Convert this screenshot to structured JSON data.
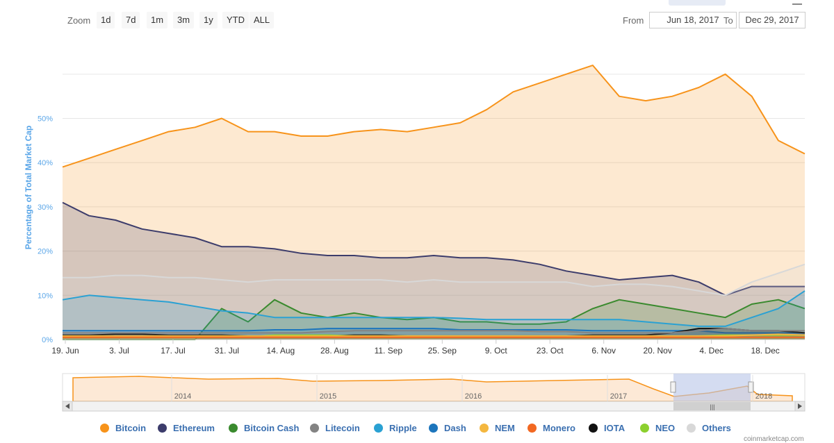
{
  "toolbar": {
    "zoom_label": "Zoom",
    "zoom_buttons": [
      "1d",
      "7d",
      "1m",
      "3m",
      "1y",
      "YTD",
      "ALL"
    ],
    "from_label": "From",
    "from_value": "Jun 18, 2017",
    "to_label": "To",
    "to_value": "Dec 29, 2017"
  },
  "legend": [
    {
      "label": "Bitcoin",
      "color": "#f7931a"
    },
    {
      "label": "Ethereum",
      "color": "#3c3c6b"
    },
    {
      "label": "Bitcoin Cash",
      "color": "#3a8a2e"
    },
    {
      "label": "Litecoin",
      "color": "#838383"
    },
    {
      "label": "Ripple",
      "color": "#2aa1d3"
    },
    {
      "label": "Dash",
      "color": "#1c75bc"
    },
    {
      "label": "NEM",
      "color": "#f4b73f"
    },
    {
      "label": "Monero",
      "color": "#f26822"
    },
    {
      "label": "IOTA",
      "color": "#111111"
    },
    {
      "label": "NEO",
      "color": "#8cd02e"
    },
    {
      "label": "Others",
      "color": "#d8d8d8"
    }
  ],
  "navigator": {
    "year_labels": [
      "2014",
      "2015",
      "2016",
      "2017",
      "2018"
    ]
  },
  "credit": "coinmarketcap.com",
  "chart_data": {
    "type": "area",
    "title": "",
    "ylabel": "Percentage of Total Market Cap",
    "xlabel": "",
    "ylim": [
      0,
      65
    ],
    "yticks": [
      "0%",
      "10%",
      "20%",
      "30%",
      "40%",
      "50%"
    ],
    "ytick_values": [
      0,
      10,
      20,
      30,
      40,
      50
    ],
    "xticks": [
      "19. Jun",
      "3. Jul",
      "17. Jul",
      "31. Jul",
      "14. Aug",
      "28. Aug",
      "11. Sep",
      "25. Sep",
      "9. Oct",
      "23. Oct",
      "6. Nov",
      "20. Nov",
      "4. Dec",
      "18. Dec"
    ],
    "x": [
      "Jun 19",
      "Jun 26",
      "Jul 3",
      "Jul 10",
      "Jul 17",
      "Jul 24",
      "Jul 31",
      "Aug 7",
      "Aug 14",
      "Aug 21",
      "Aug 28",
      "Sep 4",
      "Sep 11",
      "Sep 18",
      "Sep 25",
      "Oct 2",
      "Oct 9",
      "Oct 16",
      "Oct 23",
      "Oct 30",
      "Nov 6",
      "Nov 13",
      "Nov 20",
      "Nov 27",
      "Dec 4",
      "Dec 11",
      "Dec 18",
      "Dec 25",
      "Dec 29"
    ],
    "series": [
      {
        "name": "Bitcoin",
        "color": "#f7931a",
        "values": [
          39,
          41,
          43,
          45,
          47,
          48,
          50,
          47,
          47,
          46,
          46,
          47,
          47.5,
          47,
          48,
          49,
          52,
          56,
          58,
          60,
          62,
          55,
          54,
          55,
          57,
          60,
          55,
          45,
          42
        ]
      },
      {
        "name": "Ethereum",
        "color": "#3c3c6b",
        "values": [
          31,
          28,
          27,
          25,
          24,
          23,
          21,
          21,
          20.5,
          19.5,
          19,
          19,
          18.5,
          18.5,
          19,
          18.5,
          18.5,
          18,
          17,
          15.5,
          14.5,
          13.5,
          14,
          14.5,
          13,
          10,
          12,
          12,
          12
        ]
      },
      {
        "name": "Others",
        "color": "#d8d8d8",
        "values": [
          14,
          14,
          14.5,
          14.5,
          14,
          14,
          13.5,
          13,
          13.5,
          13.5,
          13.5,
          13.5,
          13.5,
          13,
          13.5,
          13,
          13,
          13,
          13,
          13,
          12,
          12.5,
          12.5,
          12,
          11,
          10,
          13,
          15,
          17
        ]
      },
      {
        "name": "Bitcoin Cash",
        "color": "#3a8a2e",
        "values": [
          0,
          0,
          0,
          0,
          0,
          0,
          7,
          4,
          9,
          6,
          5,
          6,
          5,
          4.5,
          5,
          4,
          4,
          3.5,
          3.5,
          4,
          7,
          9,
          8,
          7,
          6,
          5,
          8,
          9,
          7
        ]
      },
      {
        "name": "Ripple",
        "color": "#2aa1d3",
        "values": [
          9,
          10,
          9.5,
          9,
          8.5,
          7.5,
          6.5,
          6,
          5,
          5,
          5,
          5,
          5,
          5,
          5,
          4.8,
          4.5,
          4.5,
          4.5,
          4.5,
          4.5,
          4.5,
          4,
          3.5,
          3,
          3,
          5,
          7,
          11
        ]
      },
      {
        "name": "Dash",
        "color": "#1c75bc",
        "values": [
          2,
          2,
          2,
          2,
          2,
          2,
          2,
          2,
          2.2,
          2.2,
          2.5,
          2.5,
          2.5,
          2.5,
          2.5,
          2.2,
          2.2,
          2.2,
          2.2,
          2.2,
          2,
          2,
          2,
          2,
          2,
          1.5,
          1.5,
          1.5,
          1.5
        ]
      },
      {
        "name": "IOTA",
        "color": "#111111",
        "values": [
          1,
          1,
          1.2,
          1.2,
          1,
          1,
          1,
          0.8,
          0.8,
          0.8,
          0.8,
          1,
          1,
          0.8,
          0.8,
          0.8,
          0.8,
          0.8,
          0.8,
          0.8,
          1,
          1,
          1,
          1.5,
          2.5,
          2.5,
          2,
          2,
          1.5
        ]
      },
      {
        "name": "Litecoin",
        "color": "#838383",
        "values": [
          1.5,
          1.5,
          1.5,
          1.5,
          1.5,
          1.5,
          1.5,
          1.5,
          1.5,
          1.5,
          1.8,
          2,
          2,
          2,
          2,
          2,
          2,
          2,
          1.8,
          1.8,
          1.5,
          1.5,
          1.5,
          1.5,
          2,
          2.5,
          2,
          2,
          2
        ]
      },
      {
        "name": "NEO",
        "color": "#8cd02e",
        "values": [
          0.5,
          0.5,
          0.5,
          0.5,
          0.5,
          0.5,
          0.6,
          0.6,
          1,
          1,
          1,
          0.8,
          0.8,
          0.8,
          0.8,
          0.8,
          0.8,
          0.8,
          0.8,
          0.8,
          0.6,
          0.6,
          0.6,
          0.6,
          0.8,
          1,
          1,
          1,
          1
        ]
      },
      {
        "name": "NEM",
        "color": "#f4b73f",
        "values": [
          0.8,
          0.8,
          0.8,
          0.8,
          0.8,
          0.8,
          0.8,
          0.8,
          0.8,
          0.8,
          0.8,
          0.8,
          0.8,
          0.8,
          0.8,
          0.8,
          0.8,
          0.8,
          0.8,
          0.8,
          0.8,
          0.8,
          0.8,
          0.8,
          0.8,
          0.8,
          1,
          1.2,
          1
        ]
      },
      {
        "name": "Monero",
        "color": "#f26822",
        "values": [
          0.5,
          0.5,
          0.5,
          0.5,
          0.5,
          0.5,
          0.5,
          0.5,
          0.5,
          0.5,
          0.5,
          0.5,
          0.5,
          0.5,
          0.5,
          0.5,
          0.5,
          0.5,
          0.5,
          0.5,
          0.5,
          0.5,
          0.5,
          0.5,
          0.5,
          0.5,
          0.5,
          0.5,
          0.5
        ]
      }
    ],
    "grid": true,
    "legend_position": "bottom"
  }
}
